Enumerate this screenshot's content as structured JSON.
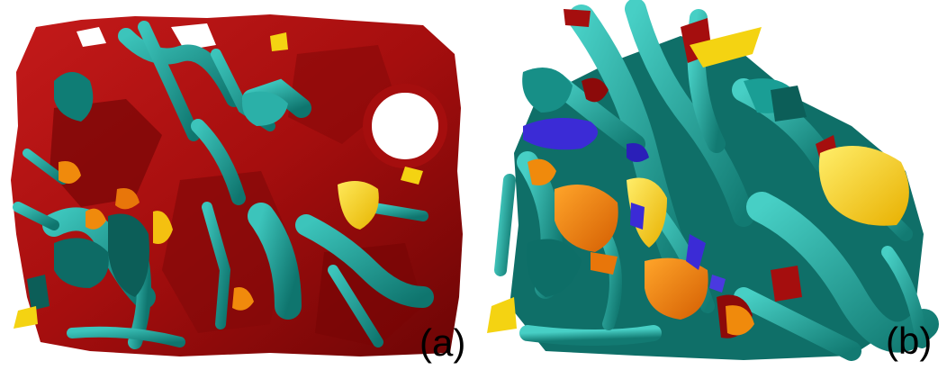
{
  "panels": [
    {
      "label": "(a)"
    },
    {
      "label": "(b)"
    }
  ],
  "colors": {
    "matrix_red": "#a50e0e",
    "dark_red": "#7a0606",
    "teal": "#1aa39c",
    "dark_teal": "#0c5e58",
    "yellow": "#f4d312",
    "orange": "#f08a0c",
    "blue": "#3b2bd6",
    "background": "#ffffff"
  }
}
